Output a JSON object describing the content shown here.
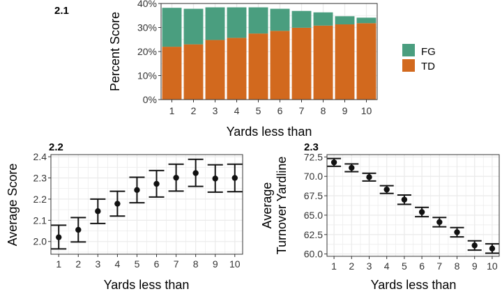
{
  "colors": {
    "fg": "#4a9e7f",
    "td": "#d2691e",
    "grid": "#ebebeb",
    "panel_border": "#333333",
    "point": "#111111"
  },
  "chart_data": [
    {
      "id": "2.1",
      "panel_label": "2.1",
      "type": "bar",
      "stacked": true,
      "categories": [
        "1",
        "2",
        "3",
        "4",
        "5",
        "6",
        "7",
        "8",
        "9",
        "10"
      ],
      "series": [
        {
          "name": "TD",
          "values": [
            22,
            23,
            24.8,
            25.7,
            27.5,
            28.6,
            29.9,
            30.8,
            31.3,
            31.8
          ]
        },
        {
          "name": "FG",
          "values": [
            16.2,
            14.8,
            13.6,
            12.7,
            10.9,
            9.2,
            7,
            5.5,
            3.4,
            2.3
          ]
        }
      ],
      "xlabel": "Yards less than",
      "ylabel": "Percent Score",
      "ylim": [
        0,
        40
      ],
      "yticks": [
        0,
        10,
        20,
        30,
        40
      ],
      "ytick_labels": [
        "0%",
        "10%",
        "20%",
        "30%",
        "40%"
      ],
      "legend": {
        "placement": "right",
        "entries": [
          "FG",
          "TD"
        ]
      },
      "grid": true
    },
    {
      "id": "2.2",
      "panel_label": "2.2",
      "type": "scatter",
      "error_bars": true,
      "x": [
        1,
        2,
        3,
        4,
        5,
        6,
        7,
        8,
        9,
        10
      ],
      "y": [
        2.02,
        2.055,
        2.143,
        2.178,
        2.243,
        2.272,
        2.301,
        2.323,
        2.297,
        2.3
      ],
      "lower": [
        1.965,
        1.998,
        2.085,
        2.12,
        2.183,
        2.21,
        2.238,
        2.26,
        2.233,
        2.235
      ],
      "upper": [
        2.077,
        2.113,
        2.2,
        2.237,
        2.303,
        2.335,
        2.365,
        2.388,
        2.362,
        2.365
      ],
      "xlabel": "Yards less than",
      "ylabel": "Average Score",
      "xlim": [
        0.6,
        10.4
      ],
      "ylim": [
        1.94,
        2.41
      ],
      "xticks": [
        1,
        2,
        3,
        4,
        5,
        6,
        7,
        8,
        9,
        10
      ],
      "yticks": [
        2.0,
        2.1,
        2.2,
        2.3,
        2.4
      ],
      "ytick_labels": [
        "2.0",
        "2.1",
        "2.2",
        "2.3",
        "2.4"
      ],
      "grid": true
    },
    {
      "id": "2.3",
      "panel_label": "2.3",
      "type": "scatter",
      "error_bars": true,
      "x": [
        1,
        2,
        3,
        4,
        5,
        6,
        7,
        8,
        9,
        10
      ],
      "y": [
        71.8,
        71.1,
        69.9,
        68.3,
        67,
        65.4,
        64.1,
        62.8,
        61.1,
        60.7
      ],
      "lower": [
        71.3,
        70.6,
        69.4,
        67.8,
        66.4,
        64.8,
        63.5,
        62.2,
        60.5,
        60.1
      ],
      "upper": [
        72.3,
        71.6,
        70.4,
        68.8,
        67.6,
        66,
        64.7,
        63.4,
        61.7,
        61.3
      ],
      "xlabel": "Yards less than",
      "ylabel": [
        "Average",
        "Turnover Yardline"
      ],
      "xlim": [
        0.6,
        10.4
      ],
      "ylim": [
        59.7,
        72.8
      ],
      "xticks": [
        1,
        2,
        3,
        4,
        5,
        6,
        7,
        8,
        9,
        10
      ],
      "yticks": [
        60,
        62.5,
        65,
        67.5,
        70,
        72.5
      ],
      "ytick_labels": [
        "60.0",
        "62.5",
        "65.0",
        "67.5",
        "70.0",
        "72.5"
      ],
      "grid": true
    }
  ]
}
